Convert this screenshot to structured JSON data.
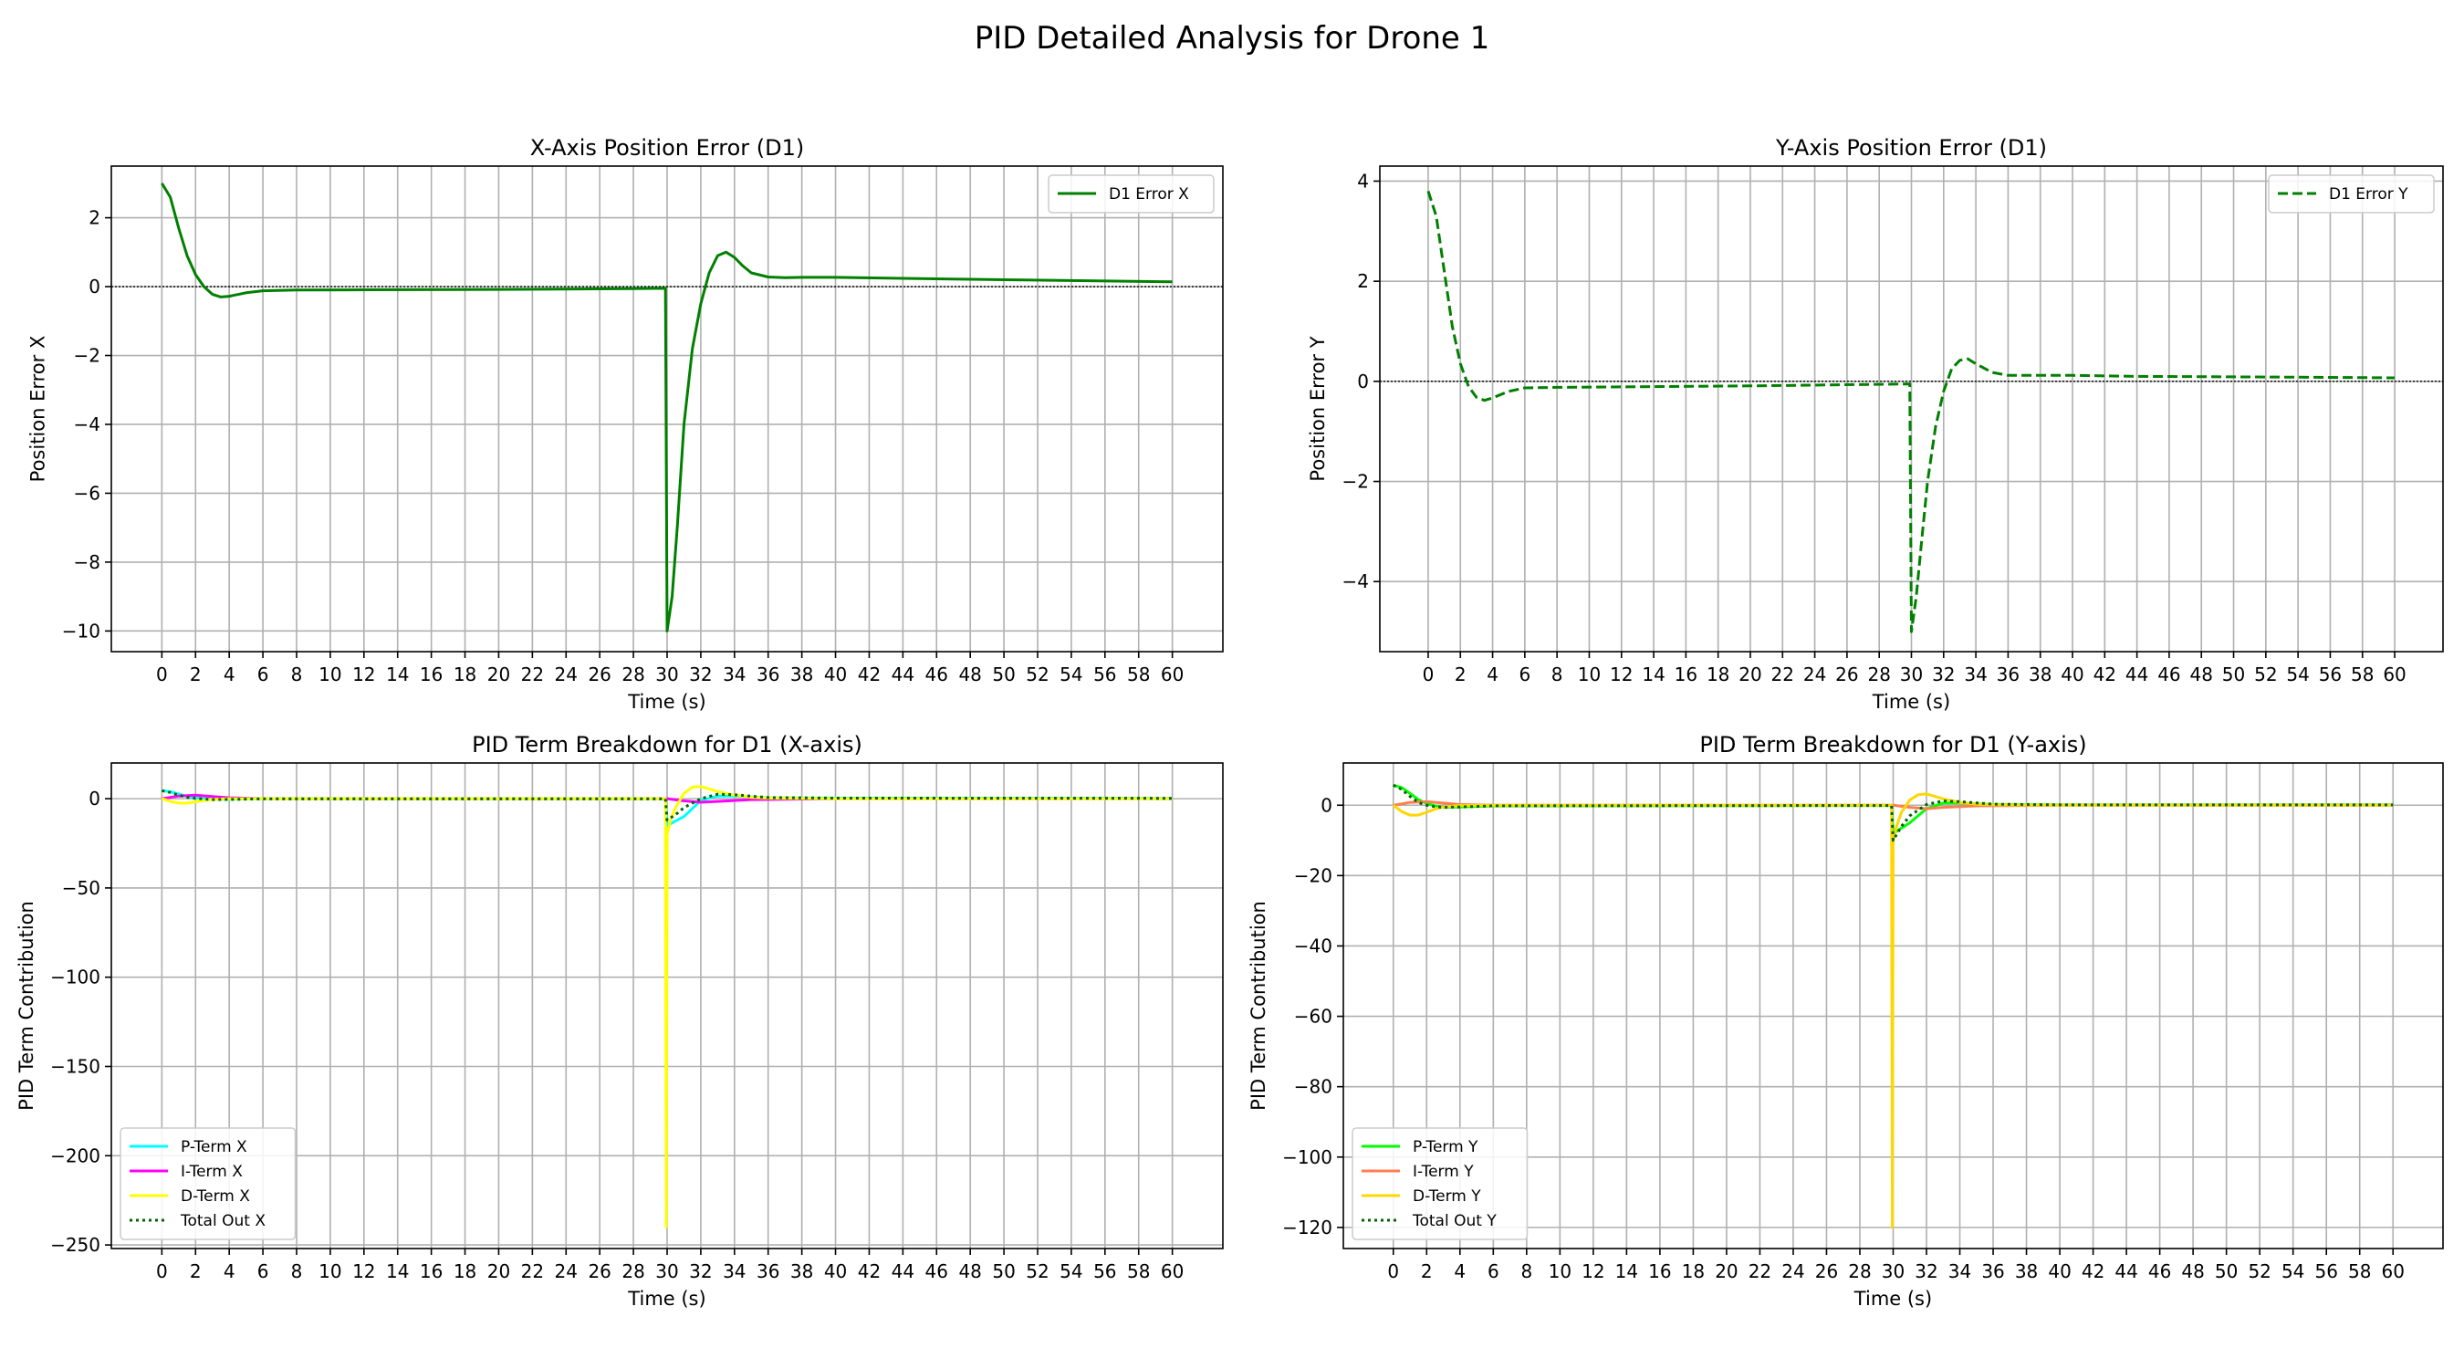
{
  "figure_title": "PID Detailed Analysis for Drone 1",
  "chart_data": [
    {
      "type": "line",
      "title": "X-Axis Position Error (D1)",
      "xlabel": "Time (s)",
      "ylabel": "Position Error X",
      "xlim": [
        -3,
        63
      ],
      "ylim": [
        -10.6,
        3.5
      ],
      "xticks": [
        0,
        2,
        4,
        6,
        8,
        10,
        12,
        14,
        16,
        18,
        20,
        22,
        24,
        26,
        28,
        30,
        32,
        34,
        36,
        38,
        40,
        42,
        44,
        46,
        48,
        50,
        52,
        54,
        56,
        58,
        60
      ],
      "yticks": [
        2,
        0,
        -2,
        -4,
        -6,
        -8,
        -10
      ],
      "grid": true,
      "zero_line": true,
      "legend": "top-right",
      "series": [
        {
          "name": "D1 Error X",
          "color": "#008000",
          "dash": "solid",
          "x": [
            0,
            0.5,
            1,
            1.5,
            2,
            2.5,
            3,
            3.5,
            4,
            5,
            6,
            8,
            12,
            20,
            28,
            29.9,
            30,
            30.3,
            30.6,
            31,
            31.5,
            32,
            32.5,
            33,
            33.5,
            34,
            34.5,
            35,
            36,
            37,
            38,
            40,
            44,
            50,
            55,
            60
          ],
          "y": [
            3,
            2.6,
            1.7,
            0.9,
            0.35,
            0.0,
            -0.22,
            -0.3,
            -0.28,
            -0.18,
            -0.12,
            -0.1,
            -0.09,
            -0.08,
            -0.06,
            -0.05,
            -10,
            -9.0,
            -7.0,
            -4.0,
            -1.8,
            -0.5,
            0.4,
            0.9,
            1.0,
            0.85,
            0.6,
            0.4,
            0.28,
            0.26,
            0.27,
            0.27,
            0.24,
            0.2,
            0.17,
            0.14
          ]
        }
      ]
    },
    {
      "type": "line",
      "title": "Y-Axis Position Error (D1)",
      "xlabel": "Time (s)",
      "ylabel": "Position Error Y",
      "xlim": [
        -3,
        63
      ],
      "ylim": [
        -5.4,
        4.3
      ],
      "xticks": [
        0,
        2,
        4,
        6,
        8,
        10,
        12,
        14,
        16,
        18,
        20,
        22,
        24,
        26,
        28,
        30,
        32,
        34,
        36,
        38,
        40,
        42,
        44,
        46,
        48,
        50,
        52,
        54,
        56,
        58,
        60
      ],
      "yticks": [
        4,
        2,
        0,
        -2,
        -4
      ],
      "grid": true,
      "zero_line": true,
      "legend": "top-right",
      "series": [
        {
          "name": "D1 Error Y",
          "color": "#008000",
          "dash": "dashed",
          "x": [
            0,
            0.5,
            1,
            1.5,
            2,
            2.5,
            3,
            3.5,
            4,
            5,
            6,
            8,
            12,
            20,
            28,
            29.9,
            30,
            30.3,
            30.6,
            31,
            31.5,
            32,
            32.5,
            33,
            33.5,
            34,
            35,
            36,
            38,
            40,
            44,
            50,
            55,
            60
          ],
          "y": [
            3.8,
            3.3,
            2.2,
            1.1,
            0.35,
            -0.1,
            -0.32,
            -0.38,
            -0.33,
            -0.2,
            -0.13,
            -0.12,
            -0.11,
            -0.09,
            -0.06,
            -0.05,
            -5.0,
            -4.3,
            -3.3,
            -2.0,
            -0.9,
            -0.2,
            0.25,
            0.42,
            0.45,
            0.35,
            0.18,
            0.12,
            0.12,
            0.12,
            0.1,
            0.09,
            0.08,
            0.07
          ]
        }
      ]
    },
    {
      "type": "line",
      "title": "PID Term Breakdown for D1 (X-axis)",
      "xlabel": "Time (s)",
      "ylabel": "PID Term Contribution",
      "xlim": [
        -3,
        63
      ],
      "ylim": [
        -252,
        20
      ],
      "xticks": [
        0,
        2,
        4,
        6,
        8,
        10,
        12,
        14,
        16,
        18,
        20,
        22,
        24,
        26,
        28,
        30,
        32,
        34,
        36,
        38,
        40,
        42,
        44,
        46,
        48,
        50,
        52,
        54,
        56,
        58,
        60
      ],
      "yticks": [
        0,
        -50,
        -100,
        -150,
        -200,
        -250
      ],
      "grid": true,
      "legend": "lower-left",
      "series": [
        {
          "name": "P-Term X",
          "color": "#00ffff",
          "dash": "solid",
          "x": [
            0,
            0.5,
            1,
            1.5,
            2,
            2.5,
            3,
            4,
            6,
            28,
            29.9,
            30,
            31,
            32,
            33,
            34,
            36,
            40,
            60
          ],
          "y": [
            4.5,
            3.9,
            2.6,
            1.3,
            0.5,
            0,
            -0.3,
            -0.3,
            -0.1,
            -0.1,
            -0.1,
            -15,
            -10,
            -1,
            1.5,
            1.5,
            0.5,
            0.3,
            0.2
          ]
        },
        {
          "name": "I-Term X",
          "color": "#ff00ff",
          "dash": "solid",
          "x": [
            0,
            1,
            2,
            3,
            4,
            6,
            28,
            29.9,
            30,
            31,
            32,
            33,
            35,
            40,
            60
          ],
          "y": [
            0,
            1.5,
            2,
            1.2,
            0.5,
            0,
            0,
            0,
            0,
            -1.2,
            -2,
            -1.5,
            -0.5,
            0,
            0
          ]
        },
        {
          "name": "D-Term X",
          "color": "#ffff00",
          "dash": "solid",
          "x": [
            0,
            0.5,
            1,
            1.5,
            2,
            2.5,
            3,
            4,
            6,
            28,
            29.9,
            29.95,
            30,
            30.2,
            30.5,
            31,
            31.5,
            32,
            32.5,
            33,
            34,
            35,
            36,
            40,
            60
          ],
          "y": [
            0,
            -1.5,
            -2.5,
            -2.5,
            -1.8,
            -1,
            -0.4,
            0,
            0,
            0,
            0,
            -240,
            -20,
            -12,
            -5,
            3,
            6.5,
            6.8,
            5.5,
            4,
            2,
            0.8,
            0.3,
            0,
            0
          ]
        },
        {
          "name": "Total Out X",
          "color": "#006400",
          "dash": "dotted",
          "x": [
            0,
            0.5,
            1,
            1.5,
            2,
            2.5,
            3,
            4,
            6,
            28,
            29.9,
            30,
            30.5,
            31,
            32,
            33,
            34,
            36,
            40,
            60
          ],
          "y": [
            4.5,
            3.5,
            2,
            0.8,
            0.2,
            -0.2,
            -0.5,
            -0.4,
            -0.1,
            -0.1,
            -0.1,
            -12,
            -9,
            -5,
            0,
            2.5,
            2.2,
            0.6,
            0.3,
            0.2
          ]
        }
      ]
    },
    {
      "type": "line",
      "title": "PID Term Breakdown for D1 (Y-axis)",
      "xlabel": "Time (s)",
      "ylabel": "PID Term Contribution",
      "xlim": [
        -3,
        63
      ],
      "ylim": [
        -126,
        12
      ],
      "xticks": [
        0,
        2,
        4,
        6,
        8,
        10,
        12,
        14,
        16,
        18,
        20,
        22,
        24,
        26,
        28,
        30,
        32,
        34,
        36,
        38,
        40,
        42,
        44,
        46,
        48,
        50,
        52,
        54,
        56,
        58,
        60
      ],
      "yticks": [
        0,
        -20,
        -40,
        -60,
        -80,
        -100,
        -120
      ],
      "grid": true,
      "legend": "lower-left",
      "series": [
        {
          "name": "P-Term Y",
          "color": "#00ff00",
          "dash": "solid",
          "x": [
            0,
            0.5,
            1,
            1.5,
            2,
            2.5,
            3,
            4,
            6,
            28,
            29.9,
            30,
            31,
            32,
            33,
            34,
            36,
            40,
            60
          ],
          "y": [
            5.7,
            5,
            3.4,
            1.6,
            0.5,
            -0.2,
            -0.6,
            -0.5,
            -0.2,
            -0.1,
            -0.1,
            -8,
            -5,
            -1,
            0.6,
            0.6,
            0.2,
            0.1,
            0.1
          ]
        },
        {
          "name": "I-Term Y",
          "color": "#ff7f50",
          "dash": "solid",
          "x": [
            0,
            1,
            2,
            3,
            4,
            6,
            28,
            29.9,
            30,
            31,
            32,
            33,
            35,
            40,
            60
          ],
          "y": [
            0,
            0.8,
            1,
            0.6,
            0.2,
            0,
            0,
            0,
            0,
            -0.6,
            -1,
            -0.6,
            -0.2,
            0,
            0
          ]
        },
        {
          "name": "D-Term Y",
          "color": "#ffd700",
          "dash": "solid",
          "x": [
            0,
            0.5,
            1,
            1.5,
            2,
            2.5,
            3,
            4,
            6,
            28,
            29.9,
            29.95,
            30,
            30.2,
            30.5,
            31,
            31.5,
            32,
            32.5,
            33,
            34,
            35,
            36,
            40,
            60
          ],
          "y": [
            0,
            -1.8,
            -2.8,
            -2.8,
            -2,
            -1.1,
            -0.5,
            -0.1,
            0,
            0,
            0,
            -120,
            -10,
            -6,
            -2,
            1.5,
            3,
            3.2,
            2.5,
            1.8,
            0.8,
            0.3,
            0.1,
            0,
            0
          ]
        },
        {
          "name": "Total Out Y",
          "color": "#006400",
          "dash": "dotted",
          "x": [
            0,
            0.5,
            1,
            1.5,
            2,
            2.5,
            3,
            4,
            6,
            28,
            29.9,
            30,
            30.5,
            31,
            32,
            33,
            34,
            36,
            40,
            60
          ],
          "y": [
            5.7,
            4.5,
            2.5,
            0.8,
            0,
            -0.4,
            -0.6,
            -0.5,
            -0.2,
            -0.1,
            -0.1,
            -10,
            -6,
            -3,
            0.2,
            1.2,
            1,
            0.3,
            0.1,
            0.1
          ]
        }
      ]
    }
  ]
}
